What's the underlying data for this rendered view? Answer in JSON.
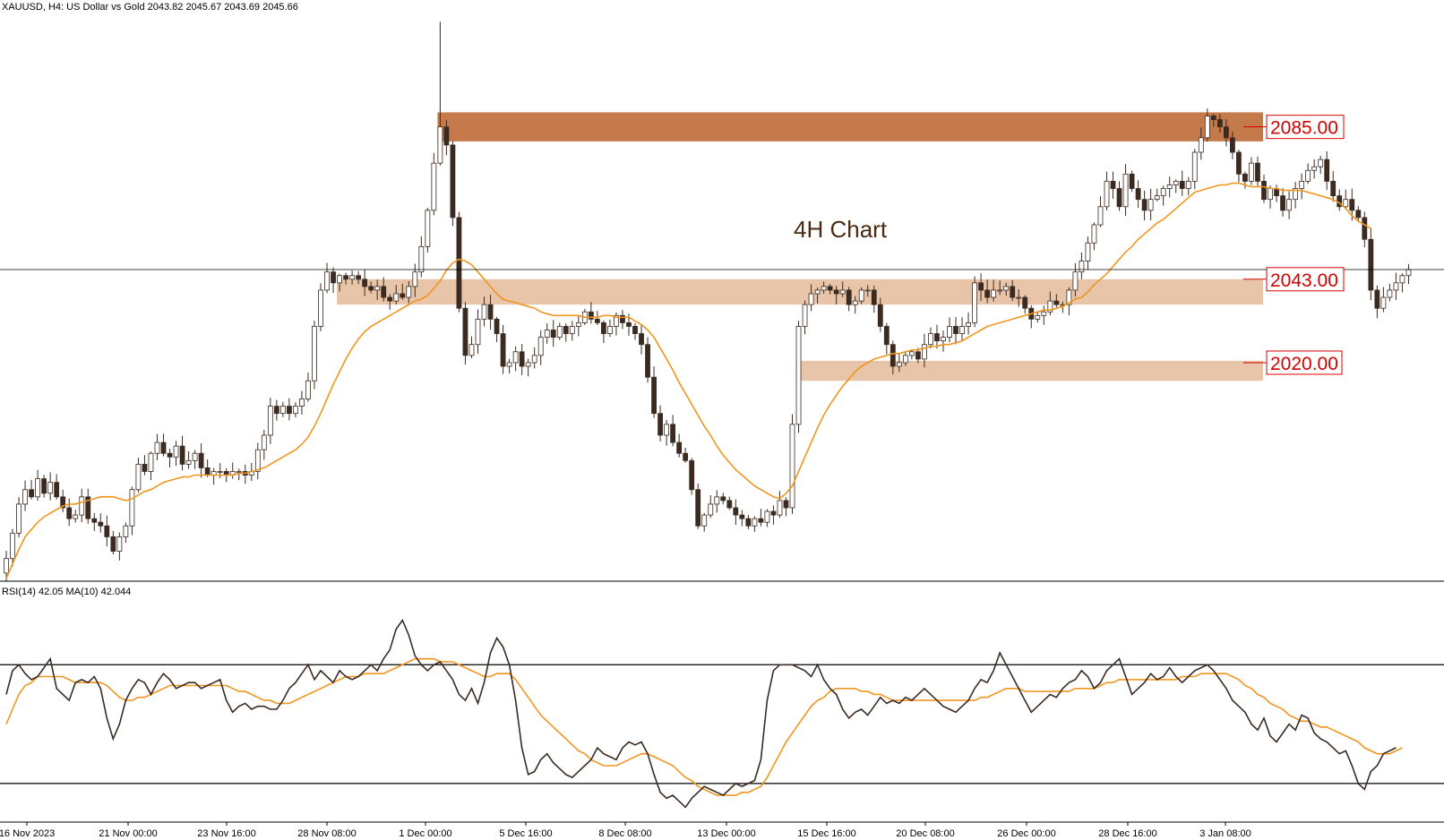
{
  "chart_data": {
    "type": "candlestick",
    "header": {
      "symbol": "XAUUSD, H4:",
      "description": "US Dollar vs Gold",
      "ohlc": "2043.82 2045.67 2043.69 2045.66"
    },
    "annotation": "4H Chart",
    "x_tick_labels": [
      "16 Nov 2023",
      "21 Nov 00:00",
      "23 Nov 16:00",
      "28 Nov 08:00",
      "1 Dec 00:00",
      "5 Dec 16:00",
      "8 Dec 08:00",
      "13 Dec 00:00",
      "15 Dec 16:00",
      "20 Dec 08:00",
      "26 Dec 00:00",
      "28 Dec 16:00",
      "3 Jan 08:00"
    ],
    "price_range": [
      1960,
      2118
    ],
    "current_price": 2045.66,
    "levels": [
      {
        "label": "2085.00",
        "value": 2085,
        "zone": [
          2081,
          2089
        ],
        "from_index": 69,
        "color": "#c47a4a"
      },
      {
        "label": "2043.00",
        "value": 2043,
        "zone": [
          2036,
          2043
        ],
        "from_index": 53,
        "color": "#e8c4a8"
      },
      {
        "label": "2020.00",
        "value": 2020,
        "zone": [
          2015,
          2020.5
        ],
        "from_index": 126,
        "color": "#e8c4a8"
      }
    ],
    "colors": {
      "bull": "#ffffff",
      "bear": "#3a2a20",
      "ma": "#f0961e",
      "rsi": "#3a2a20"
    },
    "closes": [
      1966,
      1973,
      1981,
      1985,
      1983,
      1988,
      1984,
      1987,
      1983,
      1980,
      1977,
      1978,
      1983,
      1977,
      1976,
      1975,
      1972,
      1968,
      1972,
      1975,
      1985,
      1992,
      1990,
      1995,
      1998,
      1995,
      1994,
      1997,
      1992,
      1993,
      1995,
      1991,
      1989,
      1990,
      1990,
      1989,
      1990,
      1990,
      1989,
      1990,
      1996,
      2000,
      2008,
      2006,
      2008,
      2006,
      2008,
      2010,
      2015,
      2030,
      2040,
      2045,
      2042,
      2044,
      2043,
      2044,
      2043,
      2041,
      2040,
      2041,
      2038,
      2037,
      2039,
      2038,
      2041,
      2045,
      2052,
      2062,
      2075,
      2085,
      2080,
      2060,
      2035,
      2022,
      2025,
      2032,
      2036,
      2032,
      2028,
      2019,
      2020,
      2023,
      2019,
      2020,
      2022,
      2027,
      2029,
      2027,
      2030,
      2028,
      2030,
      2031,
      2034,
      2032,
      2031,
      2028,
      2030,
      2033,
      2031,
      2030,
      2028,
      2025,
      2016,
      2006,
      2000,
      2003,
      1998,
      1995,
      1993,
      1985,
      1975,
      1978,
      1981,
      1983,
      1982,
      1980,
      1978,
      1977,
      1975,
      1977,
      1976,
      1979,
      1978,
      1982,
      1980,
      2003,
      2030,
      2036,
      2039,
      2040,
      2041,
      2040,
      2039,
      2040,
      2036,
      2037,
      2040,
      2040,
      2036,
      2030,
      2025,
      2019,
      2020,
      2022,
      2023,
      2021,
      2025,
      2028,
      2026,
      2027,
      2030,
      2028,
      2030,
      2031,
      2042,
      2040,
      2038,
      2040,
      2040,
      2041,
      2038,
      2038,
      2035,
      2032,
      2033,
      2034,
      2037,
      2036,
      2036,
      2040,
      2045,
      2048,
      2053,
      2058,
      2063,
      2070,
      2068,
      2063,
      2072,
      2068,
      2065,
      2062,
      2065,
      2066,
      2068,
      2069,
      2070,
      2068,
      2070,
      2078,
      2082,
      2088,
      2087,
      2085,
      2082,
      2078,
      2072,
      2070,
      2075,
      2070,
      2065,
      2068,
      2066,
      2062,
      2065,
      2068,
      2070,
      2073,
      2074,
      2076,
      2070,
      2066,
      2063,
      2065,
      2062,
      2060,
      2054,
      2040,
      2035,
      2038,
      2040,
      2042,
      2044,
      2045.66
    ],
    "sma": [
      1960.5,
      1964.5,
      1968.5,
      1972.0,
      1974.0,
      1976.0,
      1977.5,
      1978.5,
      1979.5,
      1980.5,
      1981.0,
      1981.0,
      1981.5,
      1982.0,
      1982.5,
      1983.0,
      1983.0,
      1983.0,
      1982.5,
      1982.0,
      1982.5,
      1983.5,
      1984.5,
      1985.0,
      1986.0,
      1987.0,
      1987.5,
      1988.0,
      1988.5,
      1988.5,
      1989.0,
      1989.0,
      1989.0,
      1989.0,
      1989.0,
      1989.0,
      1989.0,
      1989.5,
      1989.5,
      1990.0,
      1990.5,
      1991.0,
      1992.0,
      1993.0,
      1994.0,
      1995.0,
      1996.0,
      1997.5,
      1999.5,
      2002.5,
      2006.0,
      2010.0,
      2014.0,
      2017.5,
      2021.0,
      2024.0,
      2026.5,
      2028.5,
      2030.0,
      2031.0,
      2032.0,
      2033.0,
      2034.0,
      2035.0,
      2036.0,
      2037.0,
      2037.5,
      2038.5,
      2040.5,
      2042.5,
      2045.5,
      2047.5,
      2048.5,
      2048.0,
      2047.0,
      2045.0,
      2043.0,
      2041.0,
      2039.0,
      2037.5,
      2037.0,
      2036.5,
      2036.0,
      2035.5,
      2035.0,
      2034.0,
      2033.5,
      2033.0,
      2033.0,
      2033.0,
      2033.0,
      2033.0,
      2032.5,
      2032.5,
      2032.5,
      2033.0,
      2033.0,
      2032.5,
      2032.5,
      2032.5,
      2031.5,
      2030.5,
      2029.0,
      2027.0,
      2024.0,
      2021.0,
      2018.0,
      2014.5,
      2011.5,
      2008.5,
      2005.5,
      2002.5,
      2000.0,
      1997.0,
      1994.5,
      1992.5,
      1990.5,
      1989.0,
      1987.5,
      1986.0,
      1985.0,
      1984.0,
      1983.0,
      1982.5,
      1984.0,
      1986.0,
      1990.0,
      1994.0,
      1998.0,
      2002.0,
      2005.5,
      2008.5,
      2011.0,
      2013.5,
      2015.5,
      2017.5,
      2019.0,
      2020.0,
      2021.0,
      2021.5,
      2022.0,
      2022.5,
      2022.5,
      2023.0,
      2023.5,
      2023.5,
      2024.0,
      2024.5,
      2024.5,
      2025.0,
      2025.0,
      2025.5,
      2026.0,
      2027.0,
      2028.0,
      2029.0,
      2030.0,
      2030.5,
      2031.0,
      2031.5,
      2032.0,
      2032.5,
      2033.0,
      2033.5,
      2034.0,
      2034.5,
      2034.5,
      2035.0,
      2035.5,
      2036.5,
      2037.5,
      2038.0,
      2039.5,
      2041.5,
      2043.0,
      2044.5,
      2046.5,
      2048.5,
      2050.5,
      2052.0,
      2054.0,
      2055.5,
      2057.0,
      2058.5,
      2059.5,
      2061.0,
      2062.5,
      2064.0,
      2065.5,
      2067.0,
      2067.5,
      2068.0,
      2068.5,
      2069.0,
      2069.0,
      2069.5,
      2069.5,
      2069.0,
      2068.5,
      2068.5,
      2068.5,
      2068.0,
      2068.0,
      2067.5,
      2067.5,
      2067.5,
      2067.5,
      2067.0,
      2066.5,
      2066.0,
      2065.5,
      2065.0,
      2064.0,
      2062.5,
      2060.5,
      2059.0,
      2058.0,
      2057.0
    ],
    "rsi": {
      "label": "RSI(14) 42.05 MA(10) 42.044",
      "levels": [
        70,
        30
      ],
      "range": [
        20,
        90
      ],
      "values": [
        60,
        68,
        70,
        67,
        65,
        66,
        69,
        72,
        62,
        60,
        58,
        64,
        65,
        64,
        66,
        62,
        52,
        45,
        50,
        58,
        62,
        65,
        64,
        60,
        64,
        67,
        65,
        62,
        63,
        64,
        64,
        62,
        63,
        64,
        65,
        58,
        54,
        56,
        57,
        55,
        56,
        56,
        55,
        55,
        58,
        62,
        64,
        67,
        70,
        65,
        68,
        66,
        64,
        68,
        66,
        65,
        66,
        68,
        70,
        68,
        72,
        75,
        82,
        85,
        80,
        73,
        70,
        68,
        70,
        71,
        68,
        65,
        60,
        58,
        62,
        57,
        64,
        74,
        79,
        76,
        70,
        58,
        42,
        33,
        34,
        38,
        40,
        37,
        35,
        33,
        32,
        34,
        36,
        38,
        42,
        40,
        39,
        38,
        42,
        44,
        43,
        44,
        40,
        33,
        27,
        25,
        26,
        24,
        22,
        25,
        27,
        29,
        28,
        27,
        26,
        28,
        30,
        29,
        30,
        31,
        38,
        58,
        68,
        70,
        70,
        70,
        69,
        68,
        66,
        70,
        65,
        62,
        60,
        55,
        52,
        54,
        55,
        53,
        56,
        59,
        57,
        58,
        57,
        59,
        58,
        60,
        62,
        60,
        58,
        56,
        55,
        54,
        56,
        58,
        62,
        65,
        64,
        68,
        74,
        70,
        66,
        62,
        58,
        54,
        56,
        58,
        60,
        59,
        62,
        64,
        65,
        68,
        66,
        62,
        64,
        68,
        70,
        72,
        66,
        60,
        62,
        64,
        67,
        65,
        66,
        69,
        66,
        64,
        66,
        68,
        69,
        70,
        68,
        65,
        62,
        58,
        56,
        54,
        50,
        48,
        52,
        46,
        44,
        47,
        50,
        48,
        53,
        52,
        47,
        45,
        44,
        42,
        40,
        41,
        36,
        30,
        28,
        34,
        36,
        40,
        41,
        42.05
      ],
      "ma": [
        50,
        55,
        60,
        63,
        64,
        66,
        66,
        66,
        66,
        66,
        65,
        64,
        64,
        64,
        64,
        64,
        63,
        61,
        59,
        58,
        58,
        59,
        59,
        60,
        61,
        62,
        63,
        63,
        63,
        63,
        63,
        63,
        63,
        63,
        63,
        63,
        62,
        61,
        61,
        60,
        59,
        58,
        58,
        57,
        57,
        57,
        58,
        59,
        60,
        61,
        62,
        63,
        64,
        65,
        66,
        66,
        66,
        67,
        67,
        67,
        67,
        68,
        69,
        70,
        71,
        72,
        72,
        72,
        72,
        71,
        71,
        71,
        70,
        69,
        68,
        67,
        66,
        66,
        67,
        67,
        67,
        65,
        62,
        59,
        56,
        53,
        51,
        49,
        47,
        45,
        43,
        41,
        40,
        38,
        37,
        36,
        36,
        36,
        37,
        38,
        39,
        40,
        40,
        39,
        38,
        37,
        36,
        34,
        32,
        31,
        29,
        28,
        27,
        26,
        26,
        26,
        26,
        27,
        27,
        28,
        29,
        32,
        36,
        40,
        44,
        47,
        50,
        53,
        56,
        58,
        59,
        61,
        62,
        62,
        62,
        62,
        61,
        61,
        60,
        60,
        59,
        58,
        58,
        58,
        58,
        58,
        58,
        58,
        58,
        58,
        58,
        58,
        58,
        58,
        58,
        59,
        59,
        60,
        61,
        62,
        62,
        62,
        61,
        61,
        61,
        61,
        61,
        61,
        61,
        61,
        62,
        62,
        62,
        62,
        63,
        64,
        64,
        65,
        65,
        65,
        65,
        65,
        65,
        65,
        65,
        65,
        65,
        66,
        66,
        66,
        67,
        67,
        67,
        67,
        67,
        66,
        65,
        63,
        62,
        60,
        59,
        57,
        56,
        55,
        53,
        52,
        51,
        51,
        50,
        49,
        49,
        48,
        47,
        46,
        45,
        44,
        42,
        41,
        40,
        40,
        40,
        41,
        42.04
      ]
    }
  }
}
